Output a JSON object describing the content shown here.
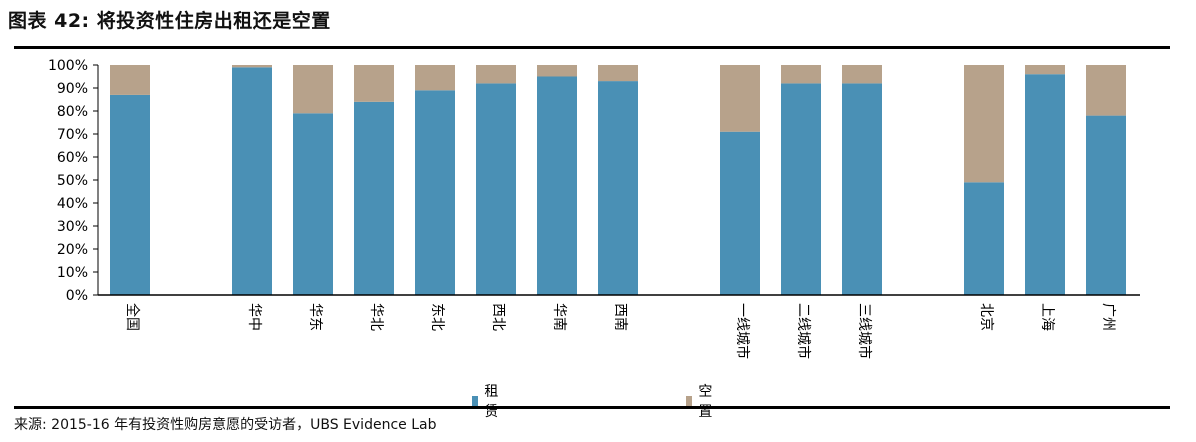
{
  "title": "图表 42: 将投资性住房出租还是空置",
  "source": "来源: 2015-16 年有投资性购房意愿的受访者，UBS Evidence Lab",
  "colors": {
    "rent": "#4a90b5",
    "vacant": "#b7a28b",
    "axis": "#000000"
  },
  "chart_data": {
    "type": "bar",
    "stacked": true,
    "title": "",
    "xlabel": "",
    "ylabel": "",
    "ylim": [
      0,
      100
    ],
    "yticks": [
      "0%",
      "10%",
      "20%",
      "30%",
      "40%",
      "50%",
      "60%",
      "70%",
      "80%",
      "90%",
      "100%"
    ],
    "categories": [
      "全国",
      "华中",
      "华东",
      "华北",
      "东北",
      "西北",
      "华南",
      "西南",
      "一线城市",
      "二线城市",
      "三线城市",
      "北京",
      "上海",
      "广州"
    ],
    "series": [
      {
        "name": "租赁",
        "values": [
          87,
          99,
          79,
          84,
          89,
          92,
          95,
          93,
          71,
          92,
          92,
          49,
          96,
          78
        ]
      },
      {
        "name": "空置",
        "values": [
          13,
          1,
          21,
          16,
          11,
          8,
          5,
          7,
          29,
          8,
          8,
          51,
          4,
          22
        ]
      }
    ],
    "legend_position": "bottom",
    "grid": false
  }
}
